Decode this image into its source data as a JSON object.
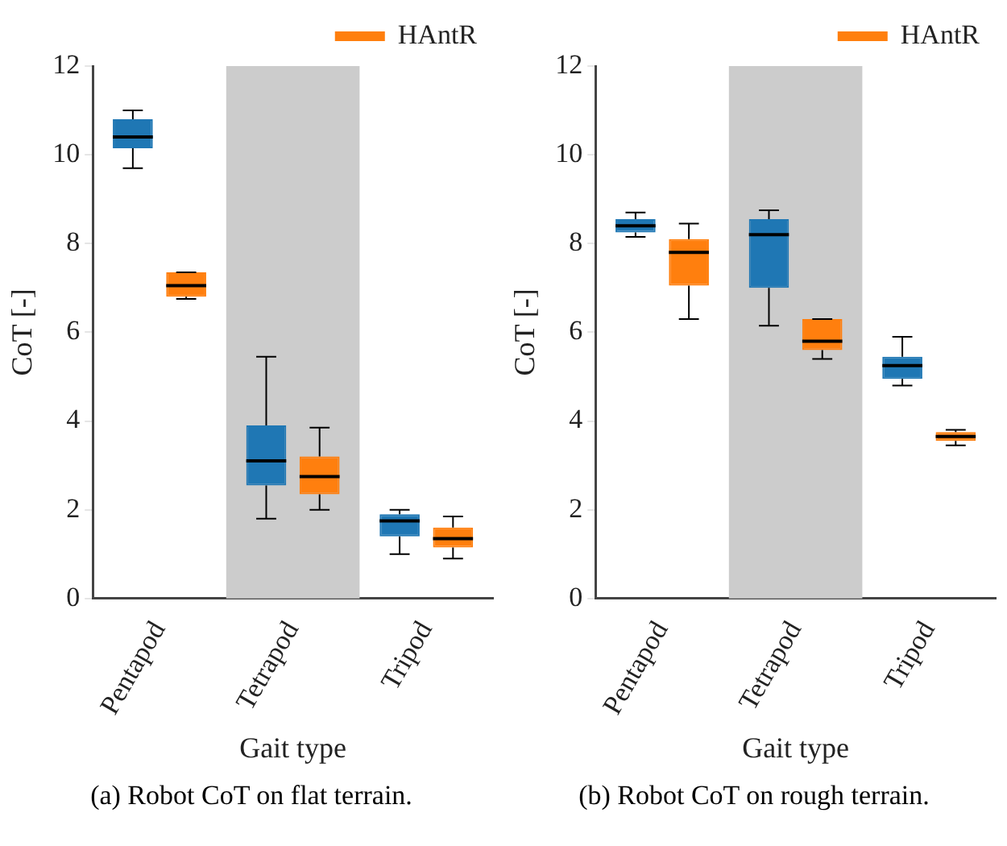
{
  "chart_data": [
    {
      "type": "box",
      "xlabel": "Gait type",
      "ylabel": "CoT [-]",
      "categories": [
        "Pentapod",
        "Tetrapod",
        "Tripod"
      ],
      "ylim": [
        0,
        12
      ],
      "yticks": [
        0,
        2,
        4,
        6,
        8,
        10,
        12
      ],
      "legend": "top right",
      "bands": [
        {
          "axis": "x",
          "from": "Tetrapod",
          "to": "Tetrapod",
          "color": "#cccccc"
        }
      ],
      "annotations": [
        "(a) Robot CoT on flat terrain."
      ],
      "series": [
        {
          "color": "#1f77b4",
          "boxes": [
            {
              "low": 9.7,
              "q1": 10.15,
              "median": 10.4,
              "q3": 10.8,
              "high": 11.0
            },
            {
              "low": 1.8,
              "q1": 2.55,
              "median": 3.1,
              "q3": 3.9,
              "high": 5.45
            },
            {
              "low": 1.0,
              "q1": 1.4,
              "median": 1.75,
              "q3": 1.9,
              "high": 2.0
            }
          ]
        },
        {
          "name": "HAntR",
          "color": "#ff7f0e",
          "boxes": [
            {
              "low": 6.75,
              "q1": 6.8,
              "median": 7.05,
              "q3": 7.35,
              "high": 7.35
            },
            {
              "low": 2.0,
              "q1": 2.35,
              "median": 2.75,
              "q3": 3.2,
              "high": 3.85
            },
            {
              "low": 0.9,
              "q1": 1.15,
              "median": 1.35,
              "q3": 1.6,
              "high": 1.85
            }
          ]
        }
      ]
    },
    {
      "type": "box",
      "xlabel": "Gait type",
      "ylabel": "CoT [-]",
      "categories": [
        "Pentapod",
        "Tetrapod",
        "Tripod"
      ],
      "ylim": [
        0,
        12
      ],
      "yticks": [
        0,
        2,
        4,
        6,
        8,
        10,
        12
      ],
      "legend": "top right",
      "bands": [
        {
          "axis": "x",
          "from": "Tetrapod",
          "to": "Tetrapod",
          "color": "#cccccc"
        }
      ],
      "annotations": [
        "(b) Robot CoT on rough terrain."
      ],
      "series": [
        {
          "color": "#1f77b4",
          "boxes": [
            {
              "low": 8.15,
              "q1": 8.25,
              "median": 8.4,
              "q3": 8.55,
              "high": 8.7
            },
            {
              "low": 6.15,
              "q1": 7.0,
              "median": 8.2,
              "q3": 8.55,
              "high": 8.75
            },
            {
              "low": 4.8,
              "q1": 4.95,
              "median": 5.25,
              "q3": 5.45,
              "high": 5.9
            }
          ]
        },
        {
          "name": "HAntR",
          "color": "#ff7f0e",
          "boxes": [
            {
              "low": 6.3,
              "q1": 7.05,
              "median": 7.8,
              "q3": 8.1,
              "high": 8.45
            },
            {
              "low": 5.4,
              "q1": 5.6,
              "median": 5.8,
              "q3": 6.3,
              "high": 6.3
            },
            {
              "low": 3.45,
              "q1": 3.55,
              "median": 3.65,
              "q3": 3.75,
              "high": 3.8
            }
          ]
        }
      ]
    }
  ]
}
